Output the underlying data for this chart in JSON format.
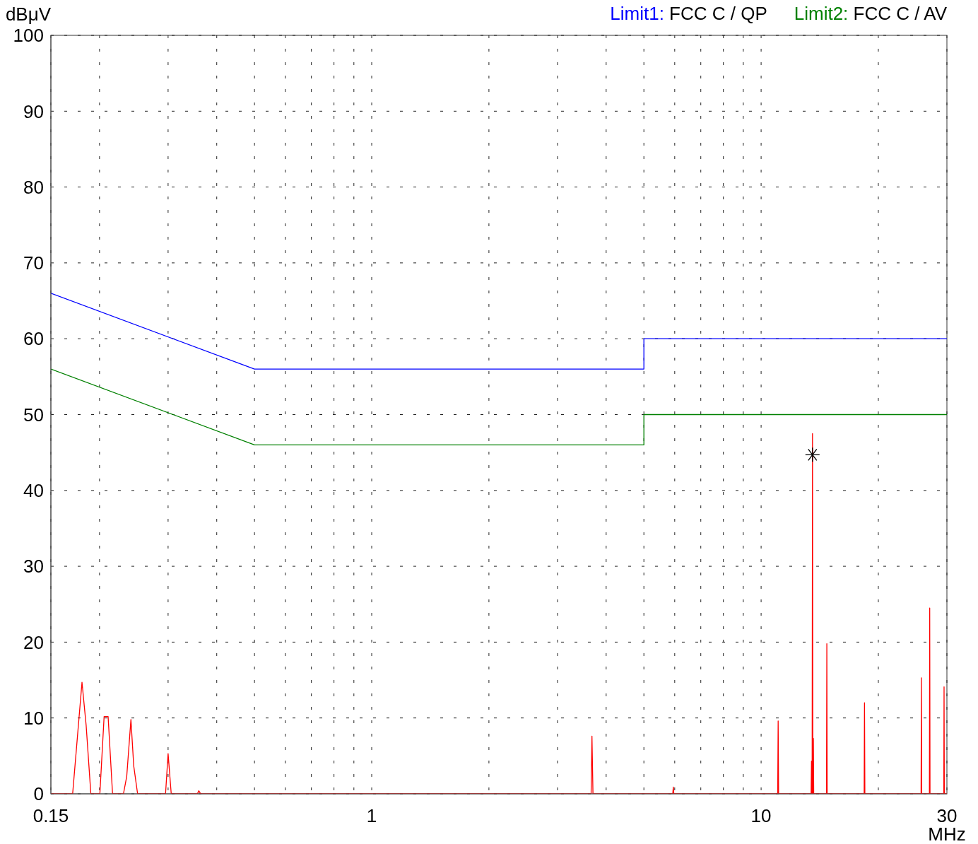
{
  "chart_data": {
    "type": "line",
    "xlabel": "MHz",
    "ylabel": "dBμV",
    "log": "x",
    "grid": true,
    "legend": "top right",
    "line_style": "solid",
    "xlim": [
      0.15,
      30
    ],
    "xticks": [
      0.15,
      {
        "value": 0.2,
        "label": null
      },
      {
        "value": 0.3,
        "label": null
      },
      {
        "value": 0.4,
        "label": null
      },
      {
        "value": 0.5,
        "label": null
      },
      {
        "value": 0.6,
        "label": null
      },
      {
        "value": 0.7,
        "label": null
      },
      {
        "value": 0.8,
        "label": null
      },
      {
        "value": 0.9,
        "label": null
      },
      1,
      {
        "value": 2,
        "label": null
      },
      {
        "value": 3,
        "label": null
      },
      {
        "value": 4,
        "label": null
      },
      {
        "value": 5,
        "label": null
      },
      {
        "value": 6,
        "label": null
      },
      {
        "value": 7,
        "label": null
      },
      {
        "value": 8,
        "label": null
      },
      {
        "value": 9,
        "label": null
      },
      10,
      {
        "value": 20,
        "label": null
      },
      30
    ],
    "ylim": [
      0,
      100
    ],
    "yticks": [
      0,
      10,
      20,
      30,
      40,
      50,
      60,
      70,
      80,
      90,
      100
    ],
    "series": [
      {
        "name": "Limit1: FCC C / QP",
        "color": "#0000ff",
        "x": [
          0.15,
          0.5,
          5,
          5,
          30
        ],
        "values": [
          66,
          56,
          56,
          60,
          60
        ]
      },
      {
        "name": "Limit2: FCC C / AV",
        "color": "#008000",
        "x": [
          0.15,
          0.5,
          5,
          5,
          30
        ],
        "values": [
          56,
          46,
          46,
          50,
          50
        ]
      },
      {
        "color": "#ff0000",
        "x": [
          0.15,
          0.1706,
          0.1803,
          0.1848,
          0.19,
          0.2004,
          0.2055,
          0.2104,
          0.216,
          0.2304,
          0.2349,
          0.2408,
          0.2448,
          0.2505,
          0.2955,
          0.3,
          0.3056,
          0.3567,
          0.3597,
          0.3637,
          3.66,
          3.678,
          3.7,
          5.93,
          5.95,
          5.97,
          11.03,
          11.06,
          11.09,
          13.44,
          13.47,
          13.5,
          13.52,
          13.55,
          13.58,
          13.6,
          13.62,
          13.65,
          14.72,
          14.75,
          14.78,
          18.39,
          18.43,
          18.47,
          25.75,
          25.8,
          25.85,
          27.05,
          27.1,
          27.15,
          29.45,
          29.5,
          29.55,
          30
        ],
        "values": [
          0,
          0,
          14.7,
          9,
          0,
          0,
          10.2,
          10.2,
          0,
          0,
          2.3,
          9.8,
          3.7,
          0,
          0,
          5.3,
          0,
          0,
          0.4,
          0,
          0,
          7.6,
          0,
          0,
          0.9,
          0,
          0,
          9.6,
          0,
          0,
          4.3,
          0,
          0,
          47.5,
          0,
          0,
          7.3,
          0,
          0,
          19.8,
          0,
          0,
          12,
          0,
          0,
          15.3,
          0,
          0,
          24.5,
          0,
          0,
          14.1,
          0,
          0
        ]
      },
      {
        "type": "scatter",
        "color": "#000000",
        "marker": "cross",
        "x": [
          13.55
        ],
        "values": [
          44.7
        ]
      }
    ]
  }
}
